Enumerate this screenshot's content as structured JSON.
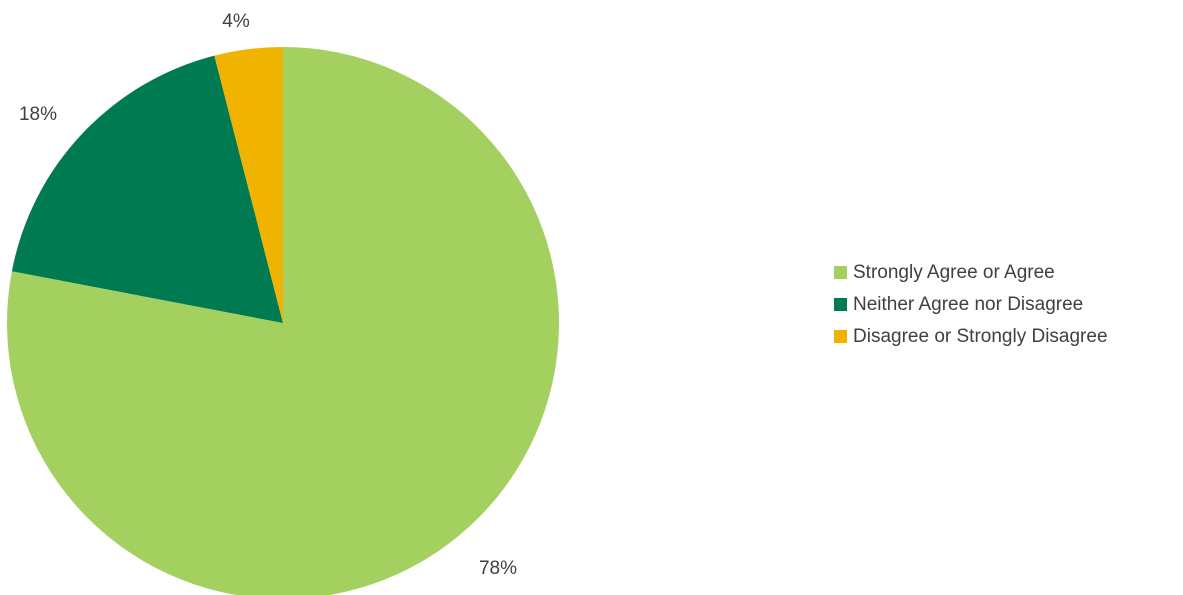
{
  "chart_data": {
    "type": "pie",
    "title": "",
    "legend_position": "right",
    "start_angle_deg": 0,
    "direction": "clockwise",
    "slices": [
      {
        "label": "Strongly Agree or Agree",
        "value": 78,
        "value_label": "78%",
        "color": "#A4D05F"
      },
      {
        "label": "Neither Agree nor Disagree",
        "value": 18,
        "value_label": "18%",
        "color": "#007A50"
      },
      {
        "label": "Disagree or Strongly Disagree",
        "value": 4,
        "value_label": "4%",
        "color": "#F0B400"
      }
    ]
  }
}
